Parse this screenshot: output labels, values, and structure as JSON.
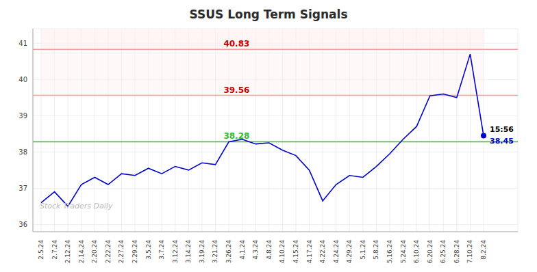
{
  "chart_data": {
    "type": "line",
    "title": "SSUS Long Term Signals",
    "title_color": "#2b2b2b",
    "categories": [
      "2.5.24",
      "2.7.24",
      "2.12.24",
      "2.14.24",
      "2.20.24",
      "2.22.24",
      "2.27.24",
      "2.29.24",
      "3.5.24",
      "3.7.24",
      "3.12.24",
      "3.14.24",
      "3.19.24",
      "3.21.24",
      "3.26.24",
      "4.1.24",
      "4.3.24",
      "4.8.24",
      "4.10.24",
      "4.15.24",
      "4.17.24",
      "4.22.24",
      "4.24.24",
      "4.29.24",
      "5.1.24",
      "5.8.24",
      "5.16.24",
      "5.24.24",
      "6.10.24",
      "6.20.24",
      "6.25.24",
      "6.28.24",
      "7.10.24",
      "8.2.24"
    ],
    "values": [
      36.6,
      36.9,
      36.5,
      37.1,
      37.3,
      37.1,
      37.4,
      37.35,
      37.55,
      37.4,
      37.6,
      37.5,
      37.7,
      37.65,
      38.28,
      38.35,
      38.22,
      38.25,
      38.05,
      37.9,
      37.5,
      36.65,
      37.1,
      37.35,
      37.3,
      37.6,
      37.95,
      38.35,
      38.7,
      39.55,
      39.6,
      39.5,
      40.7,
      38.45
    ],
    "color": "#0000cc",
    "ylim": [
      35.8,
      41.4
    ],
    "yticks": [
      36,
      37,
      38,
      39,
      40,
      41
    ],
    "grid": true,
    "grid_color": "#dddddd",
    "reference_lines": [
      {
        "value": 38.28,
        "color": "#33bb33",
        "label_color": "#33bb33"
      },
      {
        "value": 39.56,
        "color": "#ff9999",
        "label_color": "#cc0000"
      },
      {
        "value": 40.83,
        "color": "#ff9999",
        "label_color": "#cc0000"
      }
    ],
    "band_color": "#ffeeee",
    "annotations": [
      {
        "text": "15:56",
        "color": "#000000"
      },
      {
        "text": "38.45",
        "color": "#0000cc"
      }
    ],
    "watermark": {
      "text": "Stock Traders Daily",
      "color": "#bbbbbb"
    }
  }
}
